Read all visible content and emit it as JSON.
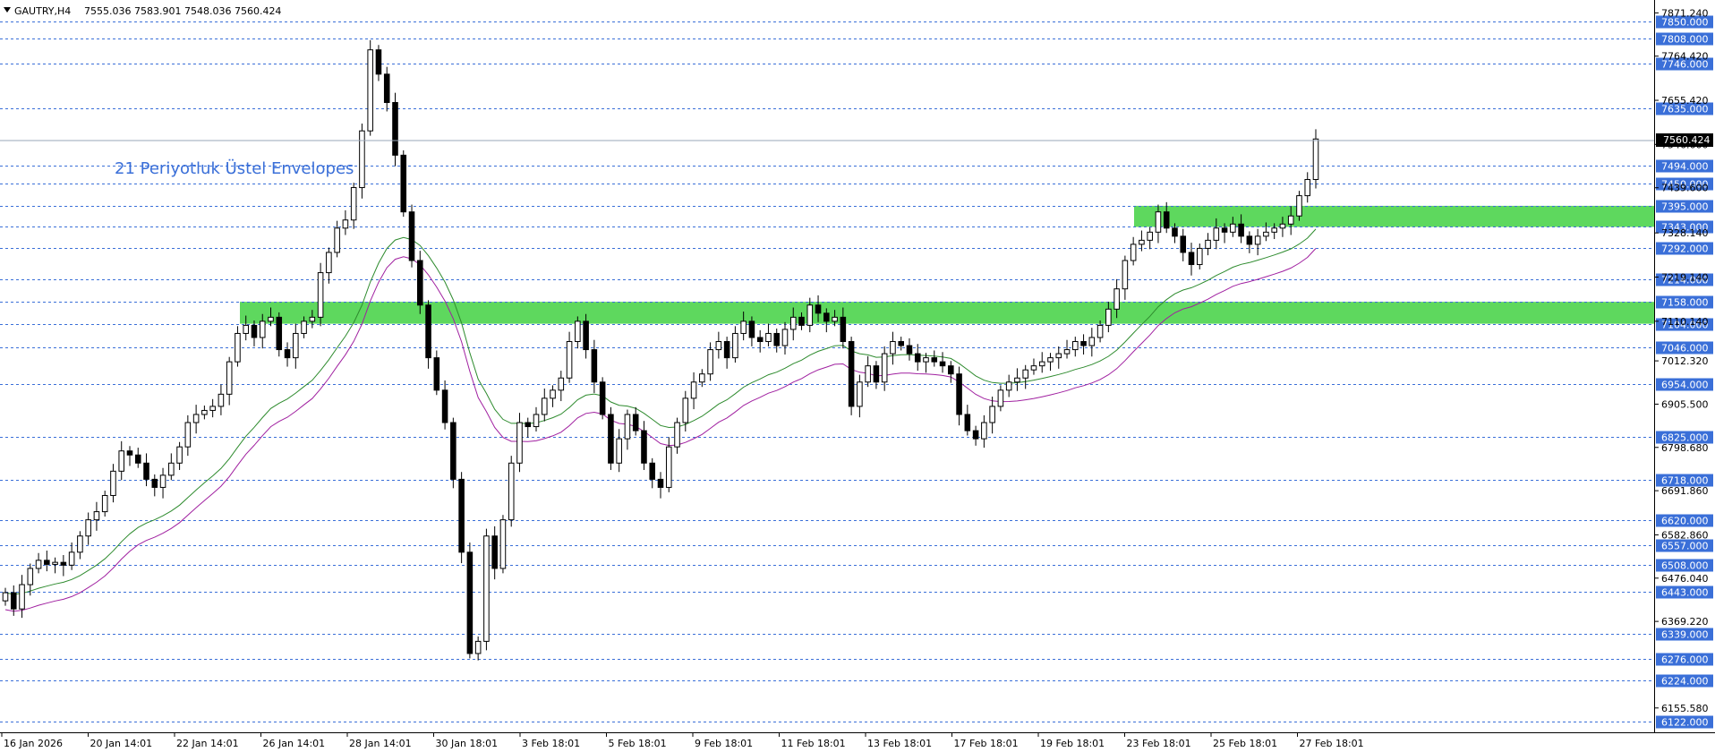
{
  "header": {
    "symbol": "GAUTRY,H4",
    "ohlc": "7555.036 7583.901 7548.036 7560.424"
  },
  "annotation": "21 Periyotluk Üstel Envelopes",
  "colors": {
    "level_line": "#3a6fd8",
    "zone": "#5ed85e",
    "ema_upper": "#2e8b2e",
    "ema_lower": "#a020a0",
    "candle": "#000000",
    "price_tag": "#000000"
  },
  "chart_data": {
    "type": "candlestick",
    "symbol": "GAUTRY",
    "timeframe": "H4",
    "ylim": [
      6110,
      7880
    ],
    "price_axis_ticks": [
      "7871.240",
      "7764.420",
      "7655.420",
      "7546.600",
      "7439.600",
      "7328.140",
      "7219.140",
      "7110.140",
      "7012.320",
      "6905.500",
      "6798.680",
      "6691.860",
      "6582.860",
      "6476.040",
      "6369.220",
      "6155.580"
    ],
    "time_labels": [
      "16 Jan 2026",
      "20 Jan 14:01",
      "22 Jan 14:01",
      "26 Jan 14:01",
      "28 Jan 14:01",
      "30 Jan 18:01",
      "3 Feb 18:01",
      "5 Feb 18:01",
      "9 Feb 18:01",
      "11 Feb 18:01",
      "13 Feb 18:01",
      "17 Feb 18:01",
      "19 Feb 18:01",
      "23 Feb 18:01",
      "25 Feb 18:01",
      "27 Feb 18:01"
    ],
    "horizontal_levels": [
      "7850.000",
      "7808.000",
      "7746.000",
      "7635.000",
      "7494.000",
      "7450.000",
      "7395.000",
      "7343.000",
      "7292.000",
      "7214.000",
      "7158.000",
      "7104.000",
      "7046.000",
      "6954.000",
      "6825.000",
      "6718.000",
      "6620.000",
      "6557.000",
      "6508.000",
      "6443.000",
      "6339.000",
      "6276.000",
      "6224.000",
      "6122.000"
    ],
    "zones": [
      {
        "low": 7343,
        "high": 7395,
        "from_label": "23 Feb 18:01"
      },
      {
        "low": 7104,
        "high": 7158,
        "from_label": "22 Jan 14:01"
      }
    ],
    "current_price": "7560.424",
    "closes": [
      6440,
      6400,
      6460,
      6500,
      6520,
      6510,
      6515,
      6508,
      6540,
      6580,
      6620,
      6640,
      6680,
      6740,
      6790,
      6780,
      6760,
      6720,
      6700,
      6730,
      6760,
      6800,
      6860,
      6880,
      6890,
      6900,
      6930,
      7010,
      7080,
      7100,
      7070,
      7110,
      7120,
      7040,
      7020,
      7080,
      7110,
      7120,
      7230,
      7280,
      7340,
      7360,
      7440,
      7580,
      7780,
      7720,
      7650,
      7520,
      7380,
      7260,
      7150,
      7020,
      6940,
      6860,
      6720,
      6540,
      6290,
      6320,
      6580,
      6500,
      6620,
      6760,
      6860,
      6850,
      6880,
      6920,
      6940,
      6970,
      7060,
      7110,
      7040,
      6960,
      6880,
      6760,
      6820,
      6880,
      6840,
      6760,
      6720,
      6700,
      6800,
      6860,
      6920,
      6960,
      6980,
      7040,
      7060,
      7020,
      7080,
      7110,
      7070,
      7060,
      7080,
      7050,
      7090,
      7120,
      7100,
      7150,
      7130,
      7110,
      7120,
      7060,
      6900,
      6960,
      7000,
      6960,
      7030,
      7060,
      7050,
      7030,
      7010,
      7020,
      7010,
      7000,
      6980,
      6880,
      6840,
      6820,
      6860,
      6900,
      6940,
      6960,
      6970,
      6990,
      7000,
      7010,
      7020,
      7030,
      7040,
      7060,
      7050,
      7070,
      7100,
      7140,
      7190,
      7260,
      7300,
      7310,
      7330,
      7380,
      7340,
      7320,
      7280,
      7250,
      7290,
      7310,
      7340,
      7330,
      7350,
      7320,
      7300,
      7320,
      7330,
      7340,
      7350,
      7370,
      7420,
      7460,
      7560
    ]
  }
}
